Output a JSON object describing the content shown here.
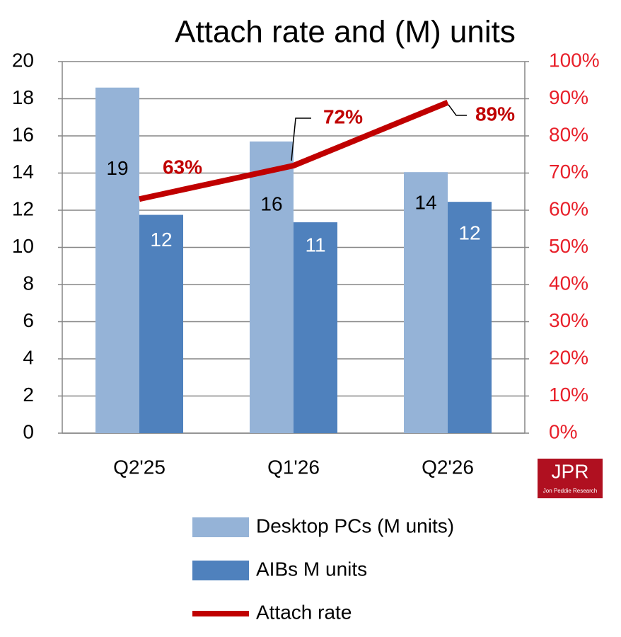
{
  "chart_data": {
    "type": "bar",
    "title": "Attach rate and (M) units",
    "categories": [
      "Q2'25",
      "Q1'26",
      "Q2'26"
    ],
    "series": [
      {
        "name": "Desktop PCs (M units)",
        "type": "bar",
        "color": "#95b3d7",
        "values": [
          18.6,
          15.7,
          14.05
        ],
        "value_labels": [
          "19",
          "16",
          "14"
        ]
      },
      {
        "name": "AIBs M units",
        "type": "bar",
        "color": "#4f81bd",
        "values": [
          11.75,
          11.35,
          12.45
        ],
        "value_labels": [
          "12",
          "11",
          "12"
        ]
      },
      {
        "name": "Attach rate",
        "type": "line",
        "axis": "y2",
        "color": "#c00000",
        "values": [
          63,
          72,
          89
        ],
        "value_labels": [
          "63%",
          "72%",
          "89%"
        ]
      }
    ],
    "ylim": [
      0,
      20
    ],
    "yticks": [
      0,
      2,
      4,
      6,
      8,
      10,
      12,
      14,
      16,
      18,
      20
    ],
    "y2lim": [
      0,
      100
    ],
    "y2ticks": [
      {
        "value": 0,
        "label": "0%"
      },
      {
        "value": 10,
        "label": "10%"
      },
      {
        "value": 20,
        "label": "20%"
      },
      {
        "value": 30,
        "label": "30%"
      },
      {
        "value": 40,
        "label": "40%"
      },
      {
        "value": 50,
        "label": "50%"
      },
      {
        "value": 60,
        "label": "60%"
      },
      {
        "value": 70,
        "label": "70%"
      },
      {
        "value": 80,
        "label": "80%"
      },
      {
        "value": 90,
        "label": "90%"
      },
      {
        "value": 100,
        "label": "100%"
      }
    ],
    "y2_tick_color": "#e8202a",
    "grid": true,
    "legend": "bottom",
    "logo": {
      "text": "JPR",
      "subtext": "Jon Peddie Research"
    }
  }
}
